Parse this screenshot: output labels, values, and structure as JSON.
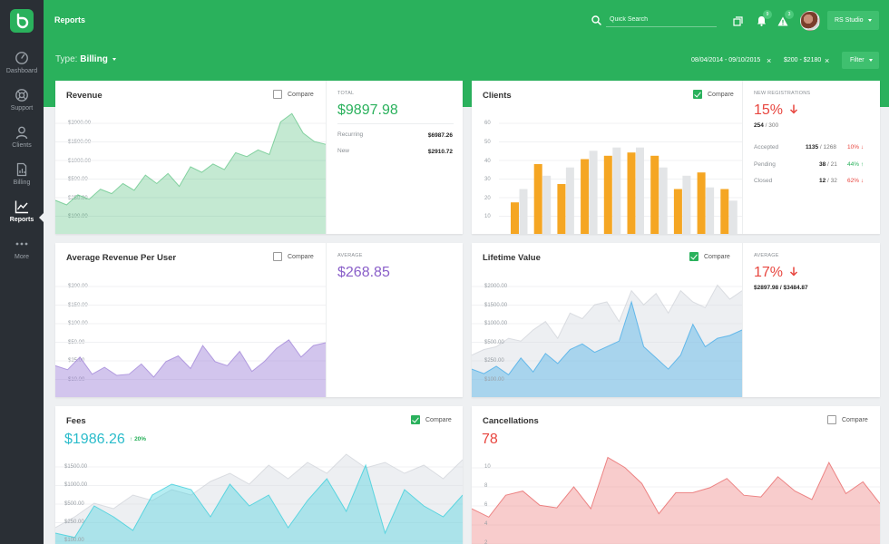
{
  "nav": {
    "items": [
      {
        "label": "Dashboard",
        "icon": "dashboard-icon"
      },
      {
        "label": "Support",
        "icon": "support-icon"
      },
      {
        "label": "Clients",
        "icon": "clients-icon"
      },
      {
        "label": "Billing",
        "icon": "billing-icon"
      },
      {
        "label": "Reports",
        "icon": "reports-icon",
        "active": true
      },
      {
        "label": "More",
        "icon": "more-icon"
      }
    ]
  },
  "header": {
    "title": "Reports",
    "search_placeholder": "Quick Search",
    "notifications_count": "9",
    "alerts_count": "3",
    "studio_label": "RS Studio",
    "type_prefix": "Type:",
    "type_value": "Billing",
    "date_range": "08/04/2014 - 09/10/2015",
    "price_range": "$200 - $2180",
    "filter_label": "Filter",
    "accent_color": "#2ab15c"
  },
  "cards": {
    "revenue": {
      "title": "Revenue",
      "compare_label": "Compare",
      "compare_checked": false,
      "total_label": "TOTAL",
      "total_value": "$9897.98",
      "rows": [
        {
          "label": "Recurring",
          "value": "$6987.26"
        },
        {
          "label": "New",
          "value": "$2910.72"
        }
      ]
    },
    "clients": {
      "title": "Clients",
      "compare_label": "Compare",
      "compare_checked": true,
      "reg_label": "NEW REGISTRATIONS",
      "reg_pct": "15%",
      "reg_count": "254",
      "reg_total": "/ 300",
      "rows": [
        {
          "label": "Accepted",
          "value": "1135",
          "total": "/ 1268",
          "pct": "10%",
          "dir": "down"
        },
        {
          "label": "Pending",
          "value": "38",
          "total": "/ 21",
          "pct": "44%",
          "dir": "up"
        },
        {
          "label": "Closed",
          "value": "12",
          "total": "/ 32",
          "pct": "62%",
          "dir": "down"
        }
      ]
    },
    "arpu": {
      "title": "Average Revenue Per User",
      "compare_label": "Compare",
      "compare_checked": false,
      "avg_label": "AVERAGE",
      "avg_value": "$268.85"
    },
    "ltv": {
      "title": "Lifetime Value",
      "compare_label": "Compare",
      "compare_checked": true,
      "avg_label": "AVERAGE",
      "avg_pct": "17%",
      "avg_detail": "$2897.98 / $3484.87"
    },
    "fees": {
      "title": "Fees",
      "compare_label": "Compare",
      "compare_checked": true,
      "value": "$1986.26",
      "change": "20%"
    },
    "cancellations": {
      "title": "Cancellations",
      "compare_label": "Compare",
      "compare_checked": false,
      "value": "78"
    }
  },
  "chart_data": [
    {
      "id": "revenue",
      "type": "area",
      "color": "#2ab15c",
      "ylim": [
        0,
        2250
      ],
      "yticks": [
        "$2000.00",
        "$1500.00",
        "$1000.00",
        "$500.00",
        "$250.00",
        "$100.00"
      ],
      "series": [
        {
          "values": [
            600,
            520,
            700,
            620,
            800,
            720,
            900,
            780,
            1050,
            900,
            1080,
            850,
            1200,
            1100,
            1250,
            1150,
            1450,
            1380,
            1500,
            1420,
            2000,
            2150,
            1800,
            1650,
            1600
          ]
        }
      ]
    },
    {
      "id": "clients",
      "type": "bar",
      "ylim": [
        0,
        65
      ],
      "yticks": [
        "60",
        "50",
        "40",
        "30",
        "20",
        "10"
      ],
      "series": [
        {
          "color": "#f5a623",
          "values": [
            19,
            42,
            30,
            45,
            47,
            49,
            47,
            27,
            37,
            27
          ]
        },
        {
          "color": "#e3e5e7",
          "values": [
            27,
            35,
            40,
            50,
            52,
            52,
            40,
            35,
            28,
            20
          ]
        }
      ]
    },
    {
      "id": "arpu",
      "type": "area",
      "color": "#9b7ed6",
      "ylim": [
        0,
        220
      ],
      "yticks": [
        "$200.00",
        "$150.00",
        "$100.00",
        "$50.00",
        "$25.00",
        "$10.00"
      ],
      "series": [
        {
          "values": [
            55,
            48,
            70,
            40,
            52,
            38,
            40,
            58,
            35,
            62,
            72,
            50,
            90,
            62,
            55,
            80,
            45,
            62,
            85,
            100,
            70,
            90,
            95
          ]
        }
      ]
    },
    {
      "id": "ltv",
      "type": "area",
      "color": "#4aaee8",
      "compare_color": "#e9ebee",
      "ylim": [
        0,
        2250
      ],
      "yticks": [
        "$2000.00",
        "$1500.00",
        "$1000.00",
        "$500.00",
        "$250.00",
        "$100.00"
      ],
      "series": [
        {
          "name": "compare",
          "values": [
            750,
            850,
            900,
            1050,
            1000,
            1200,
            1350,
            1050,
            1500,
            1400,
            1650,
            1700,
            1350,
            1900,
            1650,
            1850,
            1500,
            1900,
            1700,
            1600,
            2000,
            1750,
            1900
          ]
        },
        {
          "values": [
            500,
            420,
            550,
            400,
            700,
            450,
            780,
            600,
            850,
            950,
            800,
            900,
            1000,
            1700,
            900,
            700,
            500,
            750,
            1300,
            900,
            1050,
            1100,
            1200
          ]
        }
      ]
    },
    {
      "id": "fees",
      "type": "area",
      "color": "#3fd0dc",
      "compare_color": "#eceef1",
      "ylim": [
        0,
        1700
      ],
      "yticks": [
        "$1500.00",
        "$1000.00",
        "$500.00",
        "$250.00",
        "$100.00"
      ],
      "series": [
        {
          "name": "compare",
          "values": [
            300,
            500,
            750,
            650,
            900,
            800,
            1000,
            900,
            1150,
            1300,
            1100,
            1450,
            1200,
            1500,
            1300,
            1650,
            1400,
            1500,
            1300,
            1450,
            1200,
            1550
          ]
        },
        {
          "values": [
            200,
            120,
            700,
            500,
            250,
            900,
            1100,
            1000,
            500,
            1100,
            700,
            900,
            300,
            800,
            1200,
            600,
            1450,
            200,
            1000,
            700,
            500,
            900
          ]
        }
      ]
    },
    {
      "id": "cancellations",
      "type": "area",
      "color": "#f08f8f",
      "ylim": [
        0,
        11
      ],
      "yticks": [
        "10",
        "8",
        "6",
        "4",
        "2"
      ],
      "series": [
        {
          "values": [
            4.2,
            3.2,
            5.8,
            6.3,
            4.6,
            4.3,
            6.8,
            4.2,
            10.3,
            9.1,
            7.2,
            3.6,
            6.1,
            6.1,
            6.7,
            7.8,
            5.8,
            5.6,
            8.0,
            6.3,
            5.3,
            9.7,
            6.0,
            7.4,
            4.8
          ]
        }
      ]
    }
  ]
}
